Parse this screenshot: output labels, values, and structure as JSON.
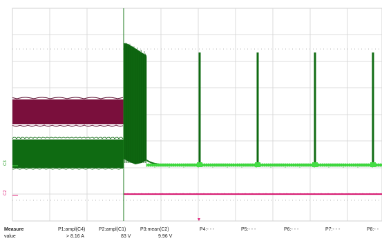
{
  "scope": {
    "colors": {
      "background": "#ffffff",
      "grid": "#d2d2d2",
      "grid_dots": "#b5b5b5",
      "ch1_fill": "#7a0f3c",
      "ch1_edge": "#5a0a2c",
      "ch2_fill": "#0f6b12",
      "ch2_light": "#44dd44",
      "ch3_line": "#e0207a",
      "trigger_line": "#1a7a1a",
      "cursor": "#e0207a"
    },
    "channel_labels": {
      "c3": "C3",
      "c2": "C2"
    },
    "pulses_count": 4
  },
  "measure": {
    "label": "Measure",
    "value_label": "value",
    "params": [
      {
        "name": "P1:ampl(C4)",
        "value": "> 8.16 A"
      },
      {
        "name": "P2:ampl(C1)",
        "value": "83 V"
      },
      {
        "name": "P3:mean(C2)",
        "value": "9.96 V"
      },
      {
        "name": "P4:- - -",
        "value": ""
      },
      {
        "name": "P5:- - -",
        "value": ""
      },
      {
        "name": "P6:- - -",
        "value": ""
      },
      {
        "name": "P7:- - -",
        "value": ""
      },
      {
        "name": "P8:- -",
        "value": ""
      }
    ]
  }
}
